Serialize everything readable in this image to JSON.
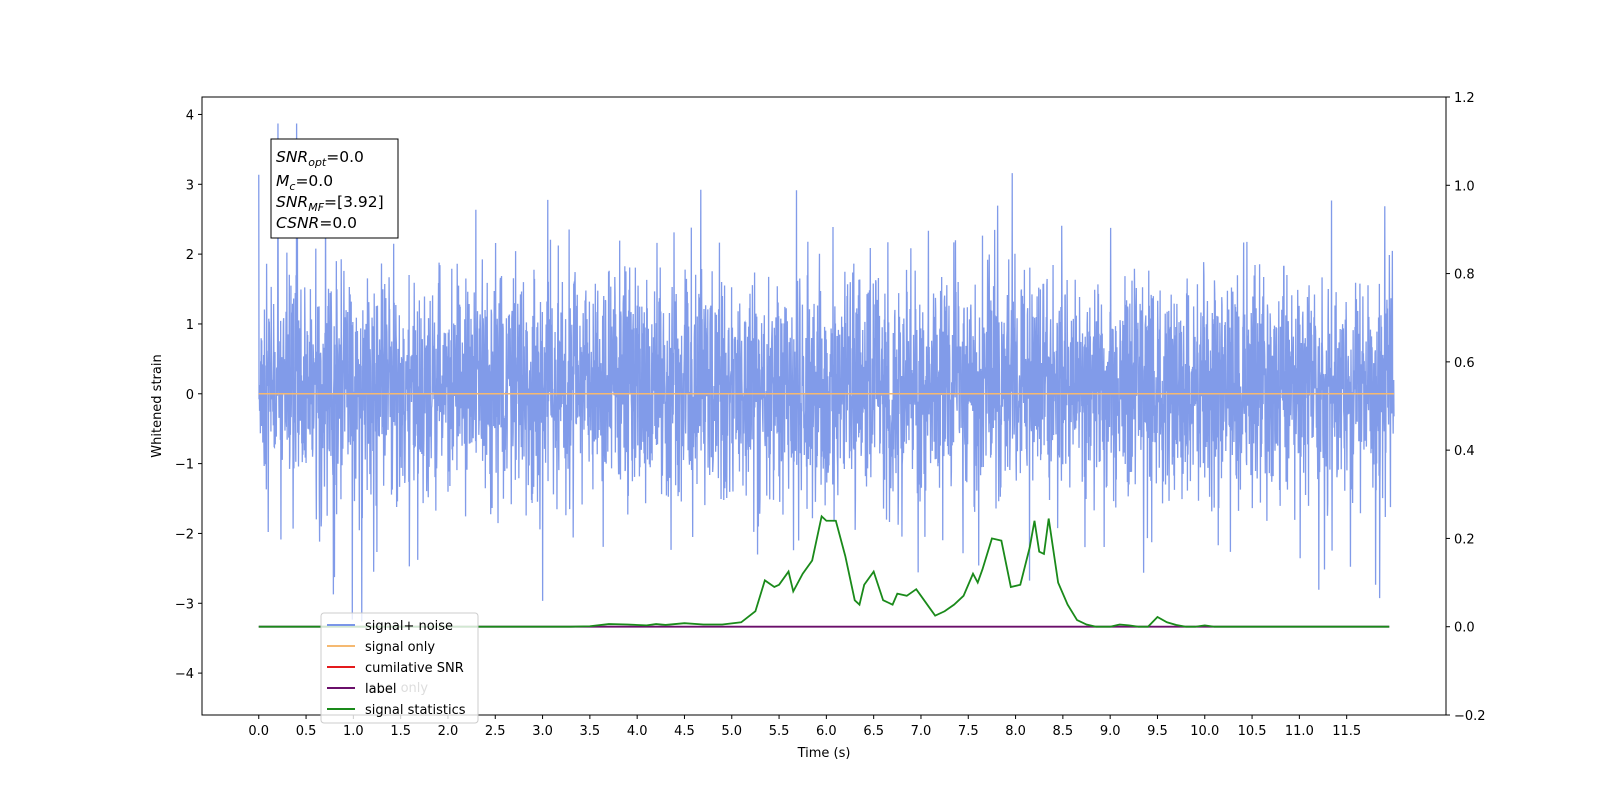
{
  "chart_data": {
    "type": "line",
    "xlabel": "Time (s)",
    "ylabel": "Whitened strain",
    "xlim": [
      -0.6,
      12.55
    ],
    "ylim": [
      -4.6,
      4.25
    ],
    "y2lim": [
      -0.2,
      1.2
    ],
    "x_ticks": [
      0.0,
      0.5,
      1.0,
      1.5,
      2.0,
      2.5,
      3.0,
      3.5,
      4.0,
      4.5,
      5.0,
      5.5,
      6.0,
      6.5,
      7.0,
      7.5,
      8.0,
      8.5,
      9.0,
      9.5,
      10.0,
      10.5,
      11.0,
      11.5
    ],
    "x_tick_labels": [
      "0.0",
      "0.5",
      "1.0",
      "1.5",
      "2.0",
      "2.5",
      "3.0",
      "3.5",
      "4.0",
      "4.5",
      "5.0",
      "5.5",
      "6.0",
      "6.5",
      "7.0",
      "7.5",
      "8.0",
      "8.5",
      "9.0",
      "9.5",
      "10.0",
      "10.5",
      "11.0",
      "11.5"
    ],
    "y_ticks": [
      4,
      3,
      2,
      1,
      0,
      -1,
      -2,
      -3,
      -4
    ],
    "y_tick_labels": [
      "4",
      "3",
      "2",
      "1",
      "0",
      "−1",
      "−2",
      "−3",
      "−4"
    ],
    "y2_ticks": [
      1.2,
      1.0,
      0.8,
      0.6,
      0.4,
      0.2,
      0.0,
      -0.2
    ],
    "y2_tick_labels": [
      "1.2",
      "1.0",
      "0.8",
      "0.6",
      "0.4",
      "0.2",
      "0.0",
      "−0.2"
    ],
    "series": [
      {
        "name": "signal+ noise",
        "color": "#7a96e8",
        "axis": "left",
        "x_range": [
          0.0,
          12.0
        ],
        "y_range": [
          -4.1,
          3.87
        ],
        "description_values": {
          "peak_max": 3.87,
          "peak_min": -4.1,
          "typical_band": [
            -2.2,
            2.3
          ]
        }
      },
      {
        "name": "signal only",
        "color": "#f5b971",
        "axis": "left",
        "x": [
          0.0,
          12.0
        ],
        "y": [
          0.0,
          0.0
        ]
      },
      {
        "name": "cumilative SNR",
        "color": "#e41a1c",
        "axis": "right",
        "x": [],
        "y": []
      },
      {
        "name": "label",
        "color": "#6a0f6a",
        "axis": "right",
        "x": [
          0.0,
          11.95
        ],
        "y": [
          0.0,
          0.0
        ]
      },
      {
        "name": "signal statistics",
        "color": "#1a8a1a",
        "axis": "right",
        "x": [
          0.0,
          0.5,
          1.0,
          1.5,
          2.0,
          2.5,
          3.0,
          3.3,
          3.5,
          3.7,
          3.9,
          4.1,
          4.2,
          4.3,
          4.5,
          4.7,
          4.9,
          5.1,
          5.25,
          5.35,
          5.45,
          5.5,
          5.6,
          5.65,
          5.75,
          5.85,
          5.95,
          6.0,
          6.1,
          6.2,
          6.3,
          6.35,
          6.4,
          6.5,
          6.6,
          6.7,
          6.75,
          6.85,
          6.95,
          7.0,
          7.1,
          7.15,
          7.25,
          7.35,
          7.45,
          7.55,
          7.6,
          7.65,
          7.75,
          7.85,
          7.95,
          8.05,
          8.15,
          8.2,
          8.25,
          8.3,
          8.35,
          8.45,
          8.55,
          8.65,
          8.75,
          8.85,
          9.0,
          9.1,
          9.2,
          9.3,
          9.4,
          9.5,
          9.6,
          9.7,
          9.8,
          9.9,
          10.0,
          10.1,
          10.2,
          10.5,
          11.0,
          11.5,
          11.95
        ],
        "y": [
          0.0,
          0.0,
          0.0,
          0.0,
          0.0,
          0.0,
          0.0,
          0.0,
          0.001,
          0.006,
          0.005,
          0.003,
          0.006,
          0.004,
          0.008,
          0.005,
          0.005,
          0.01,
          0.035,
          0.105,
          0.09,
          0.095,
          0.125,
          0.08,
          0.12,
          0.15,
          0.25,
          0.24,
          0.24,
          0.16,
          0.06,
          0.05,
          0.095,
          0.125,
          0.06,
          0.05,
          0.075,
          0.07,
          0.085,
          0.07,
          0.04,
          0.025,
          0.035,
          0.05,
          0.07,
          0.12,
          0.1,
          0.13,
          0.2,
          0.195,
          0.09,
          0.095,
          0.18,
          0.24,
          0.17,
          0.165,
          0.245,
          0.1,
          0.05,
          0.015,
          0.005,
          0.0,
          0.0,
          0.005,
          0.003,
          0.0,
          0.0,
          0.022,
          0.01,
          0.004,
          0.0,
          0.0,
          0.003,
          0.0,
          0.0,
          0.0,
          0.0,
          0.0,
          0.0
        ]
      }
    ],
    "legend": {
      "placement": "lower-left",
      "entries": [
        {
          "label": "signal+ noise",
          "color": "#7a96e8"
        },
        {
          "label": "signal only",
          "color": "#f5b971"
        },
        {
          "label": "cumilative SNR",
          "color": "#e41a1c"
        },
        {
          "label": "label",
          "color": "#6a0f6a"
        },
        {
          "label": "signal statistics",
          "color": "#1a8a1a"
        }
      ],
      "ghost_label": "label only"
    },
    "stats_box": {
      "lines": [
        {
          "base": "SNR",
          "sub": "opt",
          "value": "=0.0"
        },
        {
          "base": "M",
          "sub": "c",
          "value": "=0.0"
        },
        {
          "base": "SNR",
          "sub": "MF",
          "value": "=[3.92]"
        },
        {
          "base": "CSNR",
          "sub": "",
          "value": "=0.0"
        }
      ]
    }
  }
}
